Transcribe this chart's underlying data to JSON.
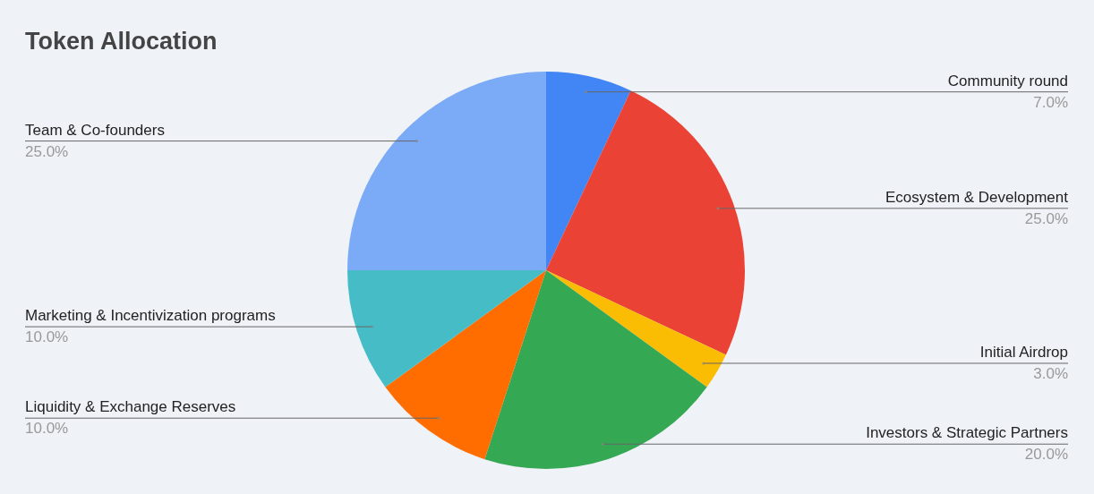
{
  "chart_data": {
    "type": "pie",
    "title": "Token Allocation",
    "categories": [
      "Community round",
      "Ecosystem & Development",
      "Initial Airdrop",
      "Investors & Strategic Partners",
      "Liquidity & Exchange Reserves",
      "Marketing & Incentivization programs",
      "Team & Co-founders"
    ],
    "values": [
      7,
      25,
      3,
      20,
      10,
      10,
      25
    ],
    "value_labels": [
      "7.0%",
      "25.0%",
      "3.0%",
      "20.0%",
      "10.0%",
      "10.0%",
      "25.0%"
    ],
    "colors": [
      "#4285f4",
      "#ea4335",
      "#fbbc04",
      "#34a853",
      "#ff6d01",
      "#46bdc6",
      "#7baaf7"
    ]
  }
}
